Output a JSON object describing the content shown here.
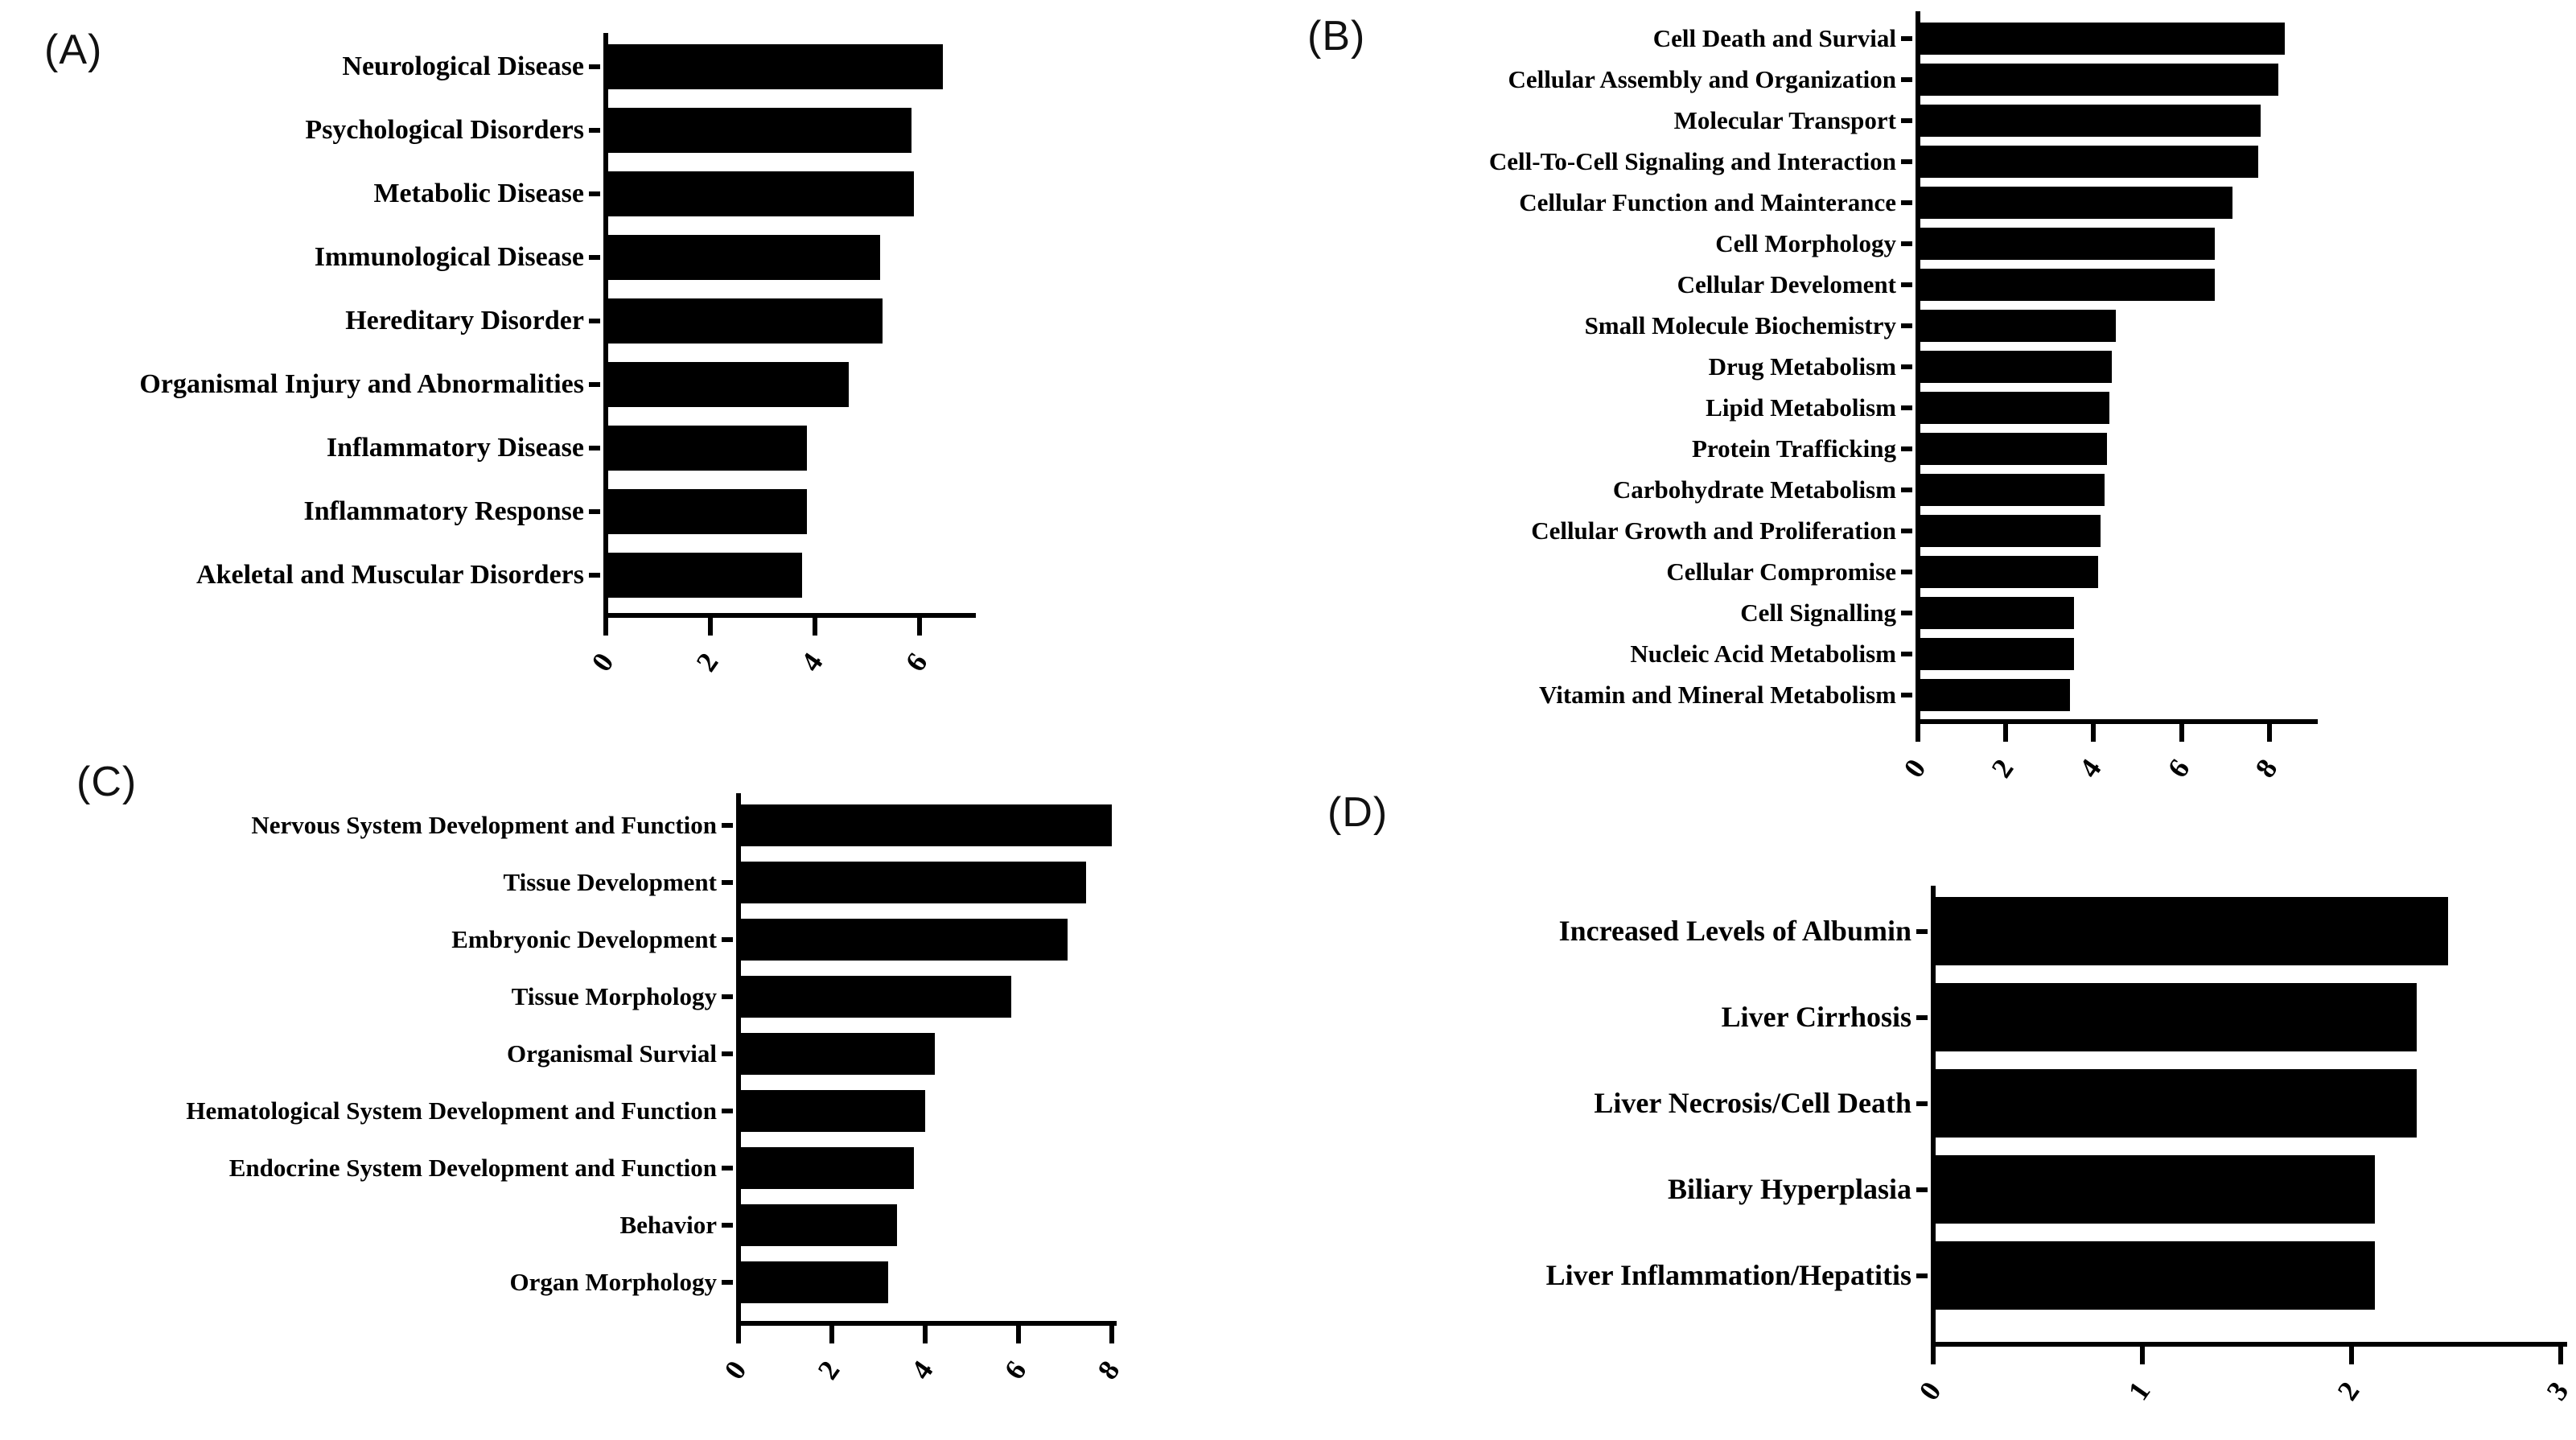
{
  "page": {
    "background": "#ffffff",
    "bar_color": "#000000",
    "axis_color": "#000000"
  },
  "chart_data": [
    {
      "panel_label": "(A)",
      "type": "bar",
      "orientation": "horizontal",
      "title": "",
      "xlabel": "",
      "ylabel": "",
      "grid": false,
      "legend": "none",
      "categories": [
        "Neurological Disease",
        "Psychological Disorders",
        "Metabolic Disease",
        "Immunological Disease",
        "Hereditary Disorder",
        "Organismal Injury and Abnormalities",
        "Inflammatory Disease",
        "Inflammatory Response",
        "Akeletal and Muscular Disorders"
      ],
      "values": [
        6.4,
        5.8,
        5.85,
        5.2,
        5.25,
        4.6,
        3.8,
        3.8,
        3.7
      ],
      "xticks": [
        0,
        2,
        4,
        6
      ],
      "xlim": [
        0,
        7.05
      ]
    },
    {
      "panel_label": "(B)",
      "type": "bar",
      "orientation": "horizontal",
      "title": "",
      "xlabel": "",
      "ylabel": "",
      "grid": false,
      "legend": "none",
      "categories": [
        "Cell Death and Survial",
        "Cellular Assembly and Organization",
        "Molecular Transport",
        "Cell-To-Cell Signaling and Interaction",
        "Cellular Function and Mainterance",
        "Cell Morphology",
        "Cellular Develoment",
        "Small Molecule Biochemistry",
        "Drug Metabolism",
        "Lipid Metabolism",
        "Protein Trafficking",
        "Carbohydrate Metabolism",
        "Cellular Growth and Proliferation",
        "Cellular Compromise",
        "Cell Signalling",
        "Nucleic Acid Metabolism",
        "Vitamin and Mineral Metabolism"
      ],
      "values": [
        8.3,
        8.15,
        7.75,
        7.7,
        7.1,
        6.7,
        6.7,
        4.45,
        4.35,
        4.3,
        4.25,
        4.2,
        4.1,
        4.05,
        3.5,
        3.5,
        3.4
      ],
      "xticks": [
        0,
        2,
        4,
        6,
        8
      ],
      "xlim": [
        0,
        9.05
      ]
    },
    {
      "panel_label": "(C)",
      "type": "bar",
      "orientation": "horizontal",
      "title": "",
      "xlabel": "",
      "ylabel": "",
      "grid": false,
      "legend": "none",
      "categories": [
        "Nervous System Development and Function",
        "Tissue Development",
        "Embryonic Development",
        "Tissue Morphology",
        "Organismal Survial",
        "Hematological System Development and Function",
        "Endocrine System Development and Function",
        "Behavior",
        "Organ Morphology"
      ],
      "values": [
        7.95,
        7.4,
        7.0,
        5.8,
        4.15,
        3.95,
        3.7,
        3.35,
        3.15
      ],
      "xticks": [
        0,
        2,
        4,
        6,
        8
      ],
      "xlim": [
        0,
        8.05
      ]
    },
    {
      "panel_label": "(D)",
      "type": "bar",
      "orientation": "horizontal",
      "title": "",
      "xlabel": "",
      "ylabel": "",
      "grid": false,
      "legend": "none",
      "categories": [
        "Increased Levels of Albumin",
        "Liver Cirrhosis",
        "Liver Necrosis/Cell Death",
        "Biliary Hyperplasia",
        "Liver Inflammation/Hepatitis"
      ],
      "values": [
        2.45,
        2.3,
        2.3,
        2.1,
        2.1
      ],
      "xticks": [
        0,
        1,
        2,
        3
      ],
      "xlim": [
        0,
        3.02
      ]
    }
  ]
}
